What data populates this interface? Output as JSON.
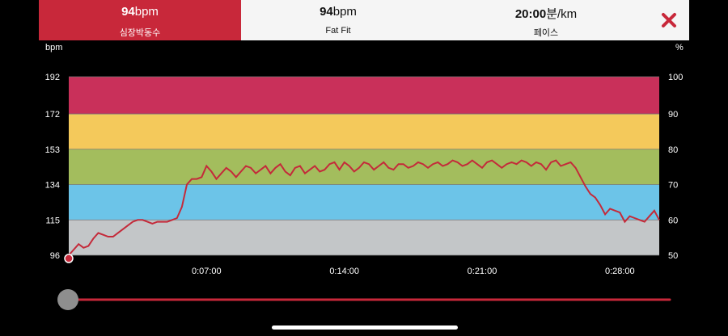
{
  "tabs": [
    {
      "value": "94",
      "unit": "bpm",
      "label": "심장박동수",
      "active": true
    },
    {
      "value": "94",
      "unit": "bpm",
      "label": "Fat Fit",
      "active": false
    },
    {
      "value": "20:00",
      "unit": "분/km",
      "label": "페이스",
      "active": false
    }
  ],
  "close_icon": "close-x-icon",
  "colors": {
    "accent": "#c8283a",
    "zone_max": "#c9305a",
    "zone_hard": "#f4c95b",
    "zone_moderate": "#a3bd5d",
    "zone_light": "#6cc4e8",
    "zone_rest": "#c3c6c8",
    "line": "#c42a3a"
  },
  "chart_data": {
    "type": "line",
    "left_unit": "bpm",
    "right_unit": "%",
    "left_ticks": [
      96,
      115,
      134,
      153,
      172,
      192
    ],
    "right_ticks": [
      50,
      60,
      70,
      80,
      90,
      100
    ],
    "x_ticks": [
      "0:07:00",
      "0:14:00",
      "0:21:00",
      "0:28:00"
    ],
    "x_tick_seconds": [
      420,
      840,
      1260,
      1680
    ],
    "xlim": [
      0,
      1800
    ],
    "ylim": [
      96,
      192
    ],
    "zones": [
      {
        "from": 96,
        "to": 115,
        "color": "#c3c6c8"
      },
      {
        "from": 115,
        "to": 134,
        "color": "#6cc4e8"
      },
      {
        "from": 134,
        "to": 153,
        "color": "#a3bd5d"
      },
      {
        "from": 153,
        "to": 172,
        "color": "#f4c95b"
      },
      {
        "from": 172,
        "to": 192,
        "color": "#c9305a"
      }
    ],
    "series": [
      {
        "x": [
          0,
          15,
          30,
          45,
          60,
          75,
          90,
          105,
          120,
          135,
          150,
          165,
          180,
          195,
          210,
          225,
          240,
          255,
          270,
          285,
          300,
          315,
          330,
          345,
          360,
          375,
          390,
          405,
          420,
          435,
          450,
          465,
          480,
          495,
          510,
          525,
          540,
          555,
          570,
          585,
          600,
          615,
          630,
          645,
          660,
          675,
          690,
          705,
          720,
          735,
          750,
          765,
          780,
          795,
          810,
          825,
          840,
          855,
          870,
          885,
          900,
          915,
          930,
          945,
          960,
          975,
          990,
          1005,
          1020,
          1035,
          1050,
          1065,
          1080,
          1095,
          1110,
          1125,
          1140,
          1155,
          1170,
          1185,
          1200,
          1215,
          1230,
          1245,
          1260,
          1275,
          1290,
          1305,
          1320,
          1335,
          1350,
          1365,
          1380,
          1395,
          1410,
          1425,
          1440,
          1455,
          1470,
          1485,
          1500,
          1515,
          1530,
          1545,
          1560,
          1575,
          1590,
          1605,
          1620,
          1635,
          1650,
          1665,
          1680,
          1695,
          1710,
          1725,
          1740,
          1755,
          1770,
          1785,
          1800
        ],
        "y": [
          96,
          99,
          102,
          100,
          101,
          105,
          108,
          107,
          106,
          106,
          108,
          110,
          112,
          114,
          115,
          115,
          114,
          113,
          114,
          114,
          114,
          115,
          116,
          122,
          134,
          137,
          137,
          138,
          144,
          141,
          137,
          140,
          143,
          141,
          138,
          141,
          144,
          143,
          140,
          142,
          144,
          140,
          143,
          145,
          141,
          139,
          143,
          144,
          140,
          142,
          144,
          141,
          142,
          145,
          146,
          142,
          146,
          144,
          141,
          143,
          146,
          145,
          142,
          144,
          146,
          143,
          142,
          145,
          145,
          143,
          144,
          146,
          145,
          143,
          145,
          146,
          144,
          145,
          147,
          146,
          144,
          145,
          147,
          145,
          143,
          146,
          147,
          145,
          143,
          145,
          146,
          145,
          147,
          146,
          144,
          146,
          145,
          142,
          146,
          147,
          144,
          145,
          146,
          143,
          138,
          133,
          129,
          127,
          123,
          118,
          121,
          120,
          119,
          114,
          117,
          116,
          115,
          114,
          117,
          120,
          115
        ]
      }
    ]
  },
  "slider": {
    "position": 0.0
  }
}
